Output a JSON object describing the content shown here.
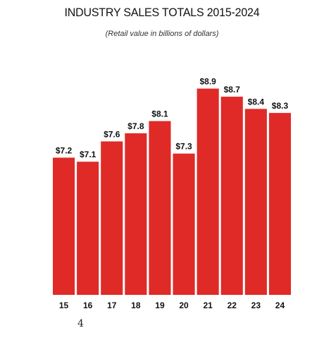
{
  "chart_data": {
    "type": "bar",
    "title": "INDUSTRY SALES TOTALS 2015-2024",
    "subtitle": "(Retail value in billions of dollars)",
    "categories": [
      "15",
      "16",
      "17",
      "18",
      "19",
      "20",
      "21",
      "22",
      "23",
      "24"
    ],
    "values": [
      7.2,
      7.1,
      7.6,
      7.8,
      8.1,
      7.3,
      8.9,
      8.7,
      8.4,
      8.3
    ],
    "data_labels": [
      "$7.2",
      "$7.1",
      "$7.6",
      "$7.8",
      "$8.1",
      "$7.3",
      "$8.9",
      "$8.7",
      "$8.4",
      "$8.3"
    ],
    "xlabel": "",
    "ylabel": "",
    "bar_color": "#e02a28",
    "grid": false,
    "legend": "none"
  },
  "page": {
    "number": "4"
  }
}
